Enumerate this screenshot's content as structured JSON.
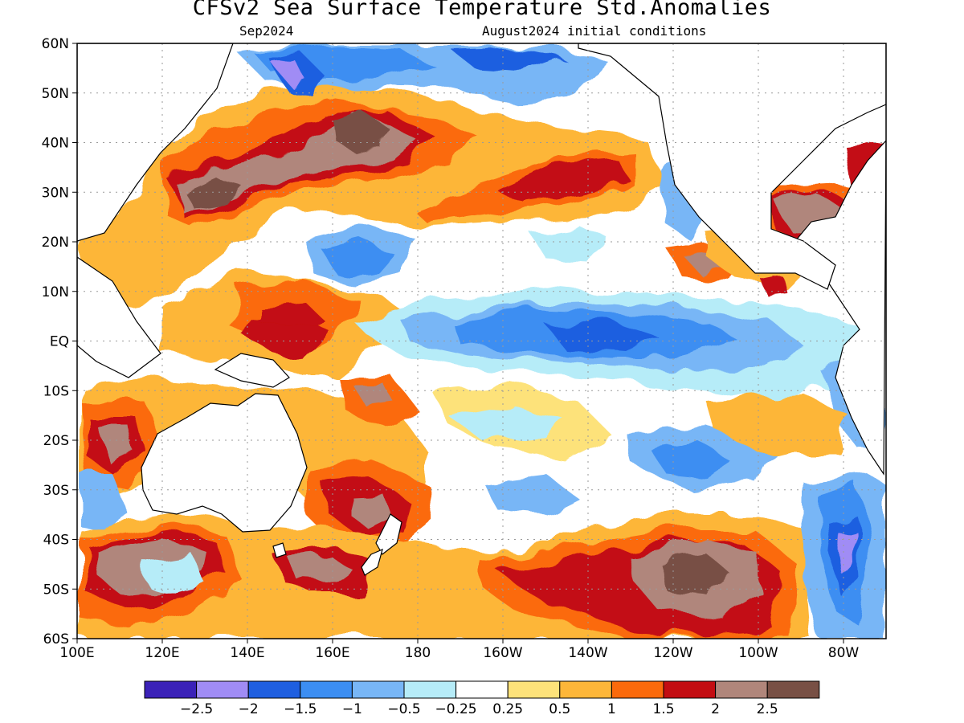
{
  "title": "CFSv2 Sea Surface Temperature Std.Anomalies",
  "subtitle_left": "Sep2024",
  "subtitle_right": "August2024 initial conditions",
  "map": {
    "lon_range": [
      100,
      290
    ],
    "lat_range": [
      -60,
      60
    ],
    "lat_ticks": [
      {
        "lat": 60,
        "label": "60N"
      },
      {
        "lat": 50,
        "label": "50N"
      },
      {
        "lat": 40,
        "label": "40N"
      },
      {
        "lat": 30,
        "label": "30N"
      },
      {
        "lat": 20,
        "label": "20N"
      },
      {
        "lat": 10,
        "label": "10N"
      },
      {
        "lat": 0,
        "label": "EQ"
      },
      {
        "lat": -10,
        "label": "10S"
      },
      {
        "lat": -20,
        "label": "20S"
      },
      {
        "lat": -30,
        "label": "30S"
      },
      {
        "lat": -40,
        "label": "40S"
      },
      {
        "lat": -50,
        "label": "50S"
      },
      {
        "lat": -60,
        "label": "60S"
      }
    ],
    "lon_ticks": [
      {
        "lon": 100,
        "label": "100E"
      },
      {
        "lon": 120,
        "label": "120E"
      },
      {
        "lon": 140,
        "label": "140E"
      },
      {
        "lon": 160,
        "label": "160E"
      },
      {
        "lon": 180,
        "label": "180"
      },
      {
        "lon": 200,
        "label": "160W"
      },
      {
        "lon": 220,
        "label": "140W"
      },
      {
        "lon": 240,
        "label": "120W"
      },
      {
        "lon": 260,
        "label": "100W"
      },
      {
        "lon": 280,
        "label": "80W"
      }
    ],
    "grid": true
  },
  "colorbar": {
    "colors": [
      "#3b22b8",
      "#a08cf5",
      "#1f5fe0",
      "#3c8ef2",
      "#78b6f6",
      "#b6ecf8",
      "#ffffff",
      "#fde27a",
      "#fdb639",
      "#fb6a0c",
      "#c30d12",
      "#b0867b",
      "#785045"
    ],
    "labels": [
      "−2.5",
      "−2",
      "−1.5",
      "−1",
      "−0.5",
      "−0.25",
      "0.25",
      "0.5",
      "1",
      "1.5",
      "2",
      "2.5"
    ]
  },
  "icons": {
    "land": "coastline-outline"
  }
}
